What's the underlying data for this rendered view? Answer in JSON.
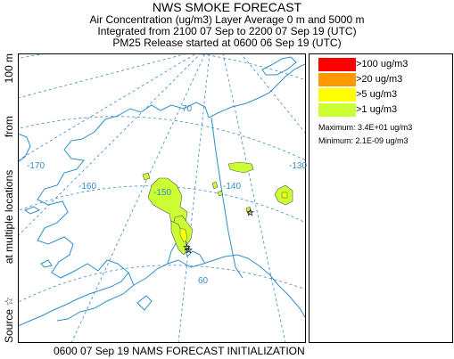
{
  "header": {
    "title": "NWS SMOKE FORECAST",
    "line1": "Air Concentration (ug/m3) Layer Average    0 m and  5000 m",
    "line2": "Integrated from 2100 07 Sep to 2200 07 Sep 19 (UTC)",
    "line3": "PM25 Release started at 0600 06 Sep 19 (UTC)"
  },
  "legend": {
    "items": [
      {
        "label": ">100 ug/m3",
        "color": "#ff0000"
      },
      {
        "label": ">20 ug/m3",
        "color": "#ff9900"
      },
      {
        "label": ">5 ug/m3",
        "color": "#ffff00"
      },
      {
        "label": ">1 ug/m3",
        "color": "#ccff33"
      }
    ],
    "maximum": "Maximum: 3.4E+01 ug/m3",
    "minimum": "Minimum: 2.1E-09 ug/m3"
  },
  "side_label": {
    "source": "Source ☆",
    "locations": "at multiple locations",
    "from": "from",
    "height": "100 m"
  },
  "footer": "0600 07 Sep 19 NAMS FORECAST INITIALIZATION",
  "map": {
    "lon_labels": [
      "-170",
      "-160",
      "-150",
      "-140",
      "-130"
    ],
    "lat_labels": [
      "70",
      "60"
    ],
    "colors": {
      "coast": "#2e8fc9",
      "grid": "#3a8ac8",
      "plume": "#ccff33",
      "plume_core": "#ffff00"
    }
  }
}
